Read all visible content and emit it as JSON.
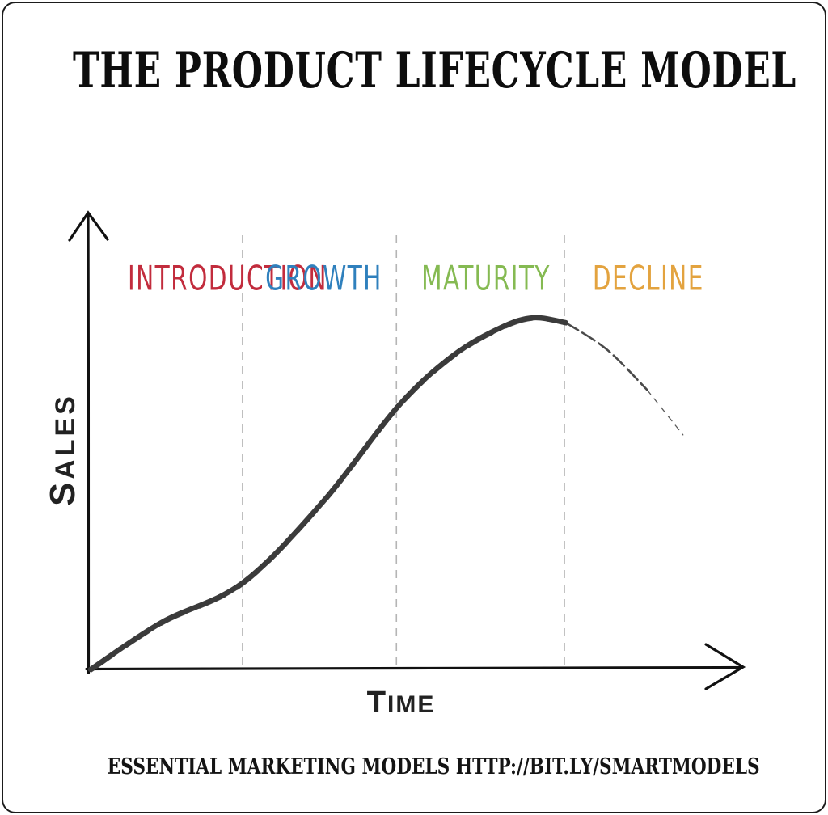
{
  "meta": {
    "title": "THE PRODUCT LIFECYCLE MODEL",
    "footer": "ESSENTIAL MARKETING MODELS HTTP://BIT.LY/SMARTMODELS"
  },
  "chart_data": {
    "type": "line",
    "title": "The Product Lifecycle Model",
    "xlabel": "TIME",
    "ylabel": "SALES",
    "axes_style": "hand-drawn arrows, no ticks, no gridlines",
    "legend": "none",
    "phases": [
      {
        "label": "INTRODUCTION",
        "color": "#c22c3d"
      },
      {
        "label": "GROWTH",
        "color": "#2f80bd"
      },
      {
        "label": "MATURITY",
        "color": "#85ba52"
      },
      {
        "label": "DECLINE",
        "color": "#e3a33f"
      }
    ],
    "phase_boundaries_x": [
      0.237,
      0.477,
      0.739
    ],
    "series": [
      {
        "name": "Sales",
        "style": "hand-drawn thick stroke, fading to broken thin stroke in Decline phase",
        "points": [
          [
            0.0,
            0.0
          ],
          [
            0.11,
            0.133
          ],
          [
            0.237,
            0.246
          ],
          [
            0.363,
            0.478
          ],
          [
            0.479,
            0.747
          ],
          [
            0.565,
            0.892
          ],
          [
            0.64,
            0.972
          ],
          [
            0.691,
            1.0
          ],
          [
            0.741,
            0.986
          ],
          [
            0.805,
            0.91
          ],
          [
            0.868,
            0.795
          ],
          [
            0.924,
            0.667
          ]
        ]
      }
    ],
    "xlim": [
      0,
      1
    ],
    "ylim": [
      0,
      1
    ],
    "curve_color": "#3b3b3b",
    "divider_color": "#b5b5b5",
    "axis_color": "#111111"
  }
}
